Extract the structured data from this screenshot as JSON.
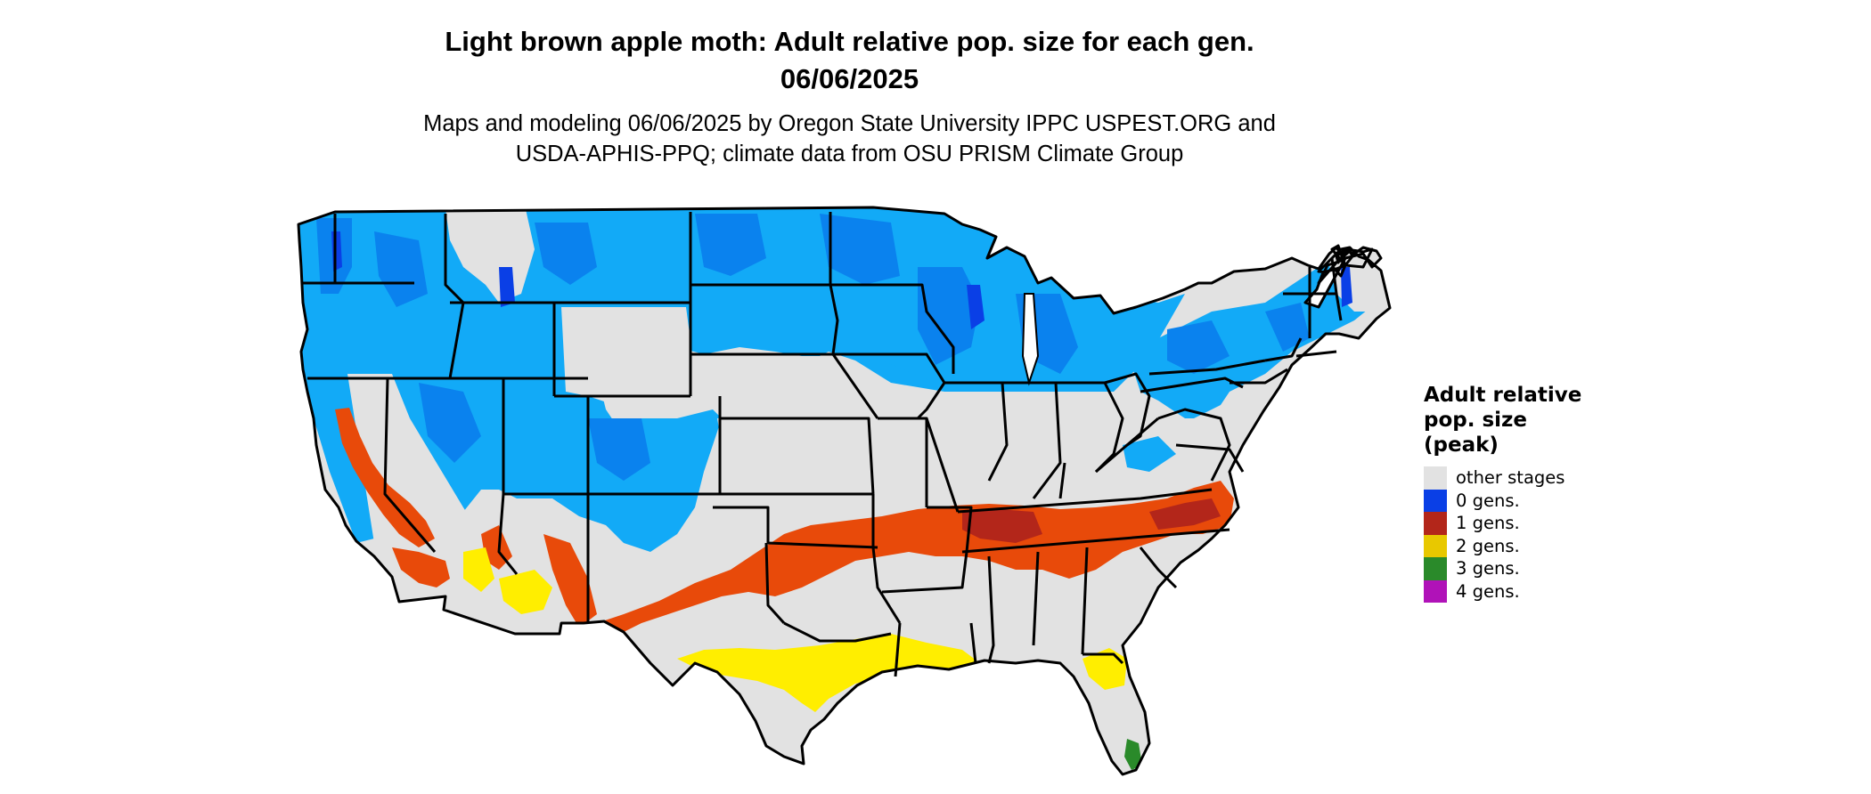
{
  "title": {
    "line1": "Light brown apple moth: Adult relative pop. size for each gen.",
    "line2": "06/06/2025"
  },
  "subtitle": {
    "line1": "Maps and modeling 06/06/2025 by Oregon State University IPPC USPEST.ORG and",
    "line2": "USDA-APHIS-PPQ; climate data from OSU PRISM Climate Group"
  },
  "legend": {
    "title_line1": "Adult relative",
    "title_line2": "pop. size",
    "title_line3": "(peak)",
    "items": [
      {
        "label": "other stages",
        "color": "#e2e2e2"
      },
      {
        "label": "0 gens.",
        "color": "#0a3fe6"
      },
      {
        "label": "1 gens.",
        "color": "#b3261a"
      },
      {
        "label": "2 gens.",
        "color": "#e8c800"
      },
      {
        "label": "3 gens.",
        "color": "#2a8a2a"
      },
      {
        "label": "4 gens.",
        "color": "#b012b8"
      }
    ]
  },
  "map_colors": {
    "background": "#e2e2e2",
    "zero_gens_light": "#12aaf7",
    "zero_gens_mid": "#0a82ee",
    "zero_gens_dark": "#0a3fe6",
    "one_gen": "#e84a0a",
    "one_gen_dark": "#b3261a",
    "two_gens": "#ffee00",
    "three_gens": "#2a8a2a",
    "borders": "#000000"
  }
}
